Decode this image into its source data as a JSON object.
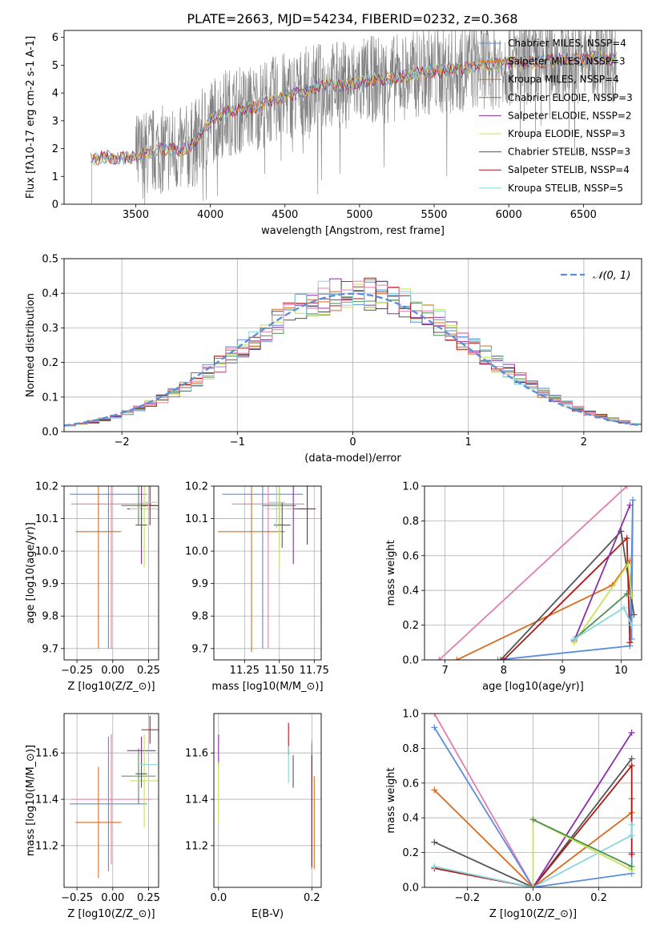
{
  "figure": {
    "title": "PLATE=2663, MJD=54234, FIBERID=0232, z=0.368"
  },
  "colors": {
    "Chabrier MILES": "#5b8ddd",
    "Salpeter MILES": "#e67e22",
    "Kroupa MILES": "#d86b1c",
    "Chabrier ELODIE": "#4f8f4f",
    "Salpeter ELODIE": "#8e2ea8",
    "Kroupa ELODIE": "#c7e25b",
    "Chabrier STELIB": "#555555",
    "Salpeter STELIB": "#b01818",
    "Kroupa STELIB": "#88d6df",
    "pink": "#e07fb0",
    "data": "#808080"
  },
  "chart_data": [
    {
      "id": "spectrum",
      "type": "line",
      "xlabel": "wavelength [Angstrom, rest frame]",
      "ylabel": "Flux [f$_\\lambda$10$^{-17}$ erg cm$^{-2}$ s$^{-1}$ A$^{-1}$]",
      "xlim": [
        3020,
        6890
      ],
      "ylim": [
        0,
        6.25
      ],
      "xticks": [
        3500,
        4000,
        4500,
        5000,
        5500,
        6000,
        6500
      ],
      "yticks": [
        0,
        1,
        2,
        3,
        4,
        5,
        6
      ],
      "continuum": {
        "x": [
          3200,
          3300,
          3400,
          3500,
          3600,
          3700,
          3800,
          3900,
          4000,
          4100,
          4200,
          4300,
          4400,
          4500,
          4600,
          4700,
          4800,
          4900,
          5000,
          5100,
          5200,
          5300,
          5400,
          5500,
          5600,
          5700,
          5800,
          5900,
          6000,
          6100,
          6200,
          6300,
          6400,
          6500,
          6600,
          6720
        ],
        "y": [
          1.6,
          1.7,
          1.65,
          1.7,
          1.9,
          2.0,
          1.9,
          2.2,
          3.0,
          3.3,
          3.4,
          3.5,
          3.7,
          3.9,
          4.0,
          4.2,
          4.3,
          4.3,
          4.4,
          4.5,
          4.5,
          4.6,
          4.7,
          4.8,
          4.8,
          4.9,
          5.0,
          5.0,
          5.1,
          5.1,
          5.1,
          5.2,
          5.2,
          5.2,
          5.3,
          5.2
        ]
      },
      "legend": [
        "Chabrier MILES, N$_{SSP}$=4",
        "Salpeter MILES, N$_{SSP}$=3",
        "Kroupa MILES, N$_{SSP}$=4",
        "Chabrier ELODIE, N$_{SSP}$=3",
        "Salpeter ELODIE, N$_{SSP}$=2",
        "Kroupa ELODIE, N$_{SSP}$=3",
        "Chabrier STELIB, N$_{SSP}$=3",
        "Salpeter STELIB, N$_{SSP}$=4",
        "Kroupa STELIB, N$_{SSP}$=5"
      ],
      "legend_placement": "top-right"
    },
    {
      "id": "residuals",
      "type": "line",
      "xlabel": "(data-model)/error",
      "ylabel": "Normed distribution",
      "xlim": [
        -2.5,
        2.5
      ],
      "ylim": [
        0,
        0.5
      ],
      "xticks": [
        -2,
        -1,
        0,
        1,
        2
      ],
      "yticks": [
        0.0,
        0.1,
        0.2,
        0.3,
        0.4,
        0.5
      ],
      "grid": true,
      "legend": [
        "$\\mathcal{N}(0,1)$"
      ],
      "legend_placement": "top-right"
    },
    {
      "id": "age_vs_Z",
      "type": "scatter",
      "xlabel": "Z [log$_{10}$($Z/Z_\\odot$)]",
      "ylabel": "age  [log$_{10}$($age/yr$)]",
      "xlim": [
        -0.34,
        0.32
      ],
      "ylim": [
        9.665,
        10.2
      ],
      "xticks": [
        -0.25,
        0,
        0.25
      ],
      "yticks": [
        9.7,
        9.8,
        9.9,
        10.0,
        10.1,
        10.2
      ],
      "grid": true,
      "points": [
        {
          "c": "Chabrier MILES",
          "x": -0.03,
          "y": 10.175,
          "xe": 0.27,
          "ye": 0.475
        },
        {
          "c": "pink",
          "x": -0.01,
          "y": 10.145,
          "xe": 0.28,
          "ye": 0.445
        },
        {
          "c": "Kroupa MILES",
          "x": -0.1,
          "y": 10.06,
          "xe": 0.16,
          "ye": 0.36
        },
        {
          "c": "Chabrier ELODIE",
          "x": 0.18,
          "y": 10.14,
          "xe": 0.12,
          "ye": 0.06
        },
        {
          "c": "Salpeter ELODIE",
          "x": 0.2,
          "y": 10.13,
          "xe": 0.1,
          "ye": 0.17
        },
        {
          "c": "Kroupa ELODIE",
          "x": 0.22,
          "y": 10.13,
          "xe": 0.1,
          "ye": 0.18
        },
        {
          "c": "Chabrier STELIB",
          "x": 0.2,
          "y": 10.08,
          "xe": 0.04,
          "ye": 0.07
        },
        {
          "c": "Salpeter STELIB",
          "x": 0.26,
          "y": 10.14,
          "xe": 0.06,
          "ye": 0.06
        },
        {
          "c": "Kroupa STELIB",
          "x": 0.25,
          "y": 10.15,
          "xe": 0.06,
          "ye": 0.08
        }
      ]
    },
    {
      "id": "age_vs_mass",
      "type": "scatter",
      "xlabel": "mass [log$_{10}$($M/M_\\odot$)]",
      "ylabel": "",
      "xlim": [
        11.03,
        11.8
      ],
      "ylim": [
        9.665,
        10.2
      ],
      "xticks": [
        11.25,
        11.5,
        11.75
      ],
      "yticks": [
        9.7,
        9.8,
        9.9,
        10.0,
        10.1,
        10.2
      ],
      "grid": true,
      "points": [
        {
          "c": "Chabrier MILES",
          "x": 11.38,
          "y": 10.175,
          "xe": 0.29,
          "ye": 0.475
        },
        {
          "c": "pink",
          "x": 11.42,
          "y": 10.145,
          "xe": 0.26,
          "ye": 0.445
        },
        {
          "c": "Kroupa MILES",
          "x": 11.3,
          "y": 10.06,
          "xe": 0.24,
          "ye": 0.37
        },
        {
          "c": "Chabrier ELODIE",
          "x": 11.5,
          "y": 10.14,
          "xe": 0.12,
          "ye": 0.06
        },
        {
          "c": "Salpeter ELODIE",
          "x": 11.6,
          "y": 10.13,
          "xe": 0.05,
          "ye": 0.17
        },
        {
          "c": "Kroupa ELODIE",
          "x": 11.5,
          "y": 10.13,
          "xe": 0.1,
          "ye": 0.18
        },
        {
          "c": "Chabrier STELIB",
          "x": 11.52,
          "y": 10.08,
          "xe": 0.06,
          "ye": 0.07
        },
        {
          "c": "Salpeter STELIB",
          "x": 11.7,
          "y": 10.13,
          "xe": 0.06,
          "ye": 0.11
        },
        {
          "c": "Kroupa STELIB",
          "x": 11.48,
          "y": 10.15,
          "xe": 0.06,
          "ye": 0.08
        }
      ]
    },
    {
      "id": "weight_vs_age",
      "type": "line",
      "xlabel": "age  [log$_{10}$($age/yr$)]",
      "ylabel": "mass weight",
      "xlim": [
        6.65,
        10.35
      ],
      "ylim": [
        0,
        1.0
      ],
      "xticks": [
        7,
        8,
        9,
        10
      ],
      "yticks": [
        0.0,
        0.2,
        0.4,
        0.6,
        0.8,
        1.0
      ],
      "grid": true,
      "series": [
        {
          "c": "pink",
          "x": [
            6.9,
            10.1
          ],
          "y": [
            0.0,
            1.0
          ]
        },
        {
          "c": "Kroupa MILES",
          "x": [
            7.2,
            9.85,
            10.15
          ],
          "y": [
            0.0,
            0.43,
            0.57
          ]
        },
        {
          "c": "Chabrier MILES",
          "x": [
            7.9,
            10.15,
            10.2,
            10.18
          ],
          "y": [
            0.0,
            0.08,
            0.92,
            0.12
          ]
        },
        {
          "c": "Chabrier STELIB",
          "x": [
            7.95,
            10.0,
            10.22
          ],
          "y": [
            0.0,
            0.74,
            0.26
          ]
        },
        {
          "c": "Salpeter STELIB",
          "x": [
            8.0,
            10.1,
            10.15
          ],
          "y": [
            0.0,
            0.7,
            0.1
          ]
        },
        {
          "c": "Salpeter ELODIE",
          "x": [
            9.2,
            10.15
          ],
          "y": [
            0.11,
            0.89
          ]
        },
        {
          "c": "Kroupa ELODIE",
          "x": [
            9.2,
            10.12,
            10.18
          ],
          "y": [
            0.1,
            0.55,
            0.37
          ]
        },
        {
          "c": "Chabrier ELODIE",
          "x": [
            9.2,
            10.1
          ],
          "y": [
            0.12,
            0.38
          ]
        },
        {
          "c": "Kroupa STELIB",
          "x": [
            9.2,
            10.05,
            10.18
          ],
          "y": [
            0.12,
            0.3,
            0.2
          ]
        }
      ]
    },
    {
      "id": "mass_vs_Z",
      "type": "scatter",
      "xlabel": "Z [log$_{10}$($Z/Z_\\odot$)]",
      "ylabel": "mass [log$_{10}$($M/M_\\odot$)]",
      "xlim": [
        -0.34,
        0.32
      ],
      "ylim": [
        11.02,
        11.77
      ],
      "xticks": [
        -0.25,
        0,
        0.25
      ],
      "yticks": [
        11.2,
        11.4,
        11.6
      ],
      "grid": true,
      "points": [
        {
          "c": "Chabrier MILES",
          "x": -0.03,
          "y": 11.38,
          "xe": 0.27,
          "ye": 0.29
        },
        {
          "c": "pink",
          "x": -0.01,
          "y": 11.4,
          "xe": 0.28,
          "ye": 0.28
        },
        {
          "c": "Kroupa MILES",
          "x": -0.1,
          "y": 11.3,
          "xe": 0.16,
          "ye": 0.24
        },
        {
          "c": "Chabrier ELODIE",
          "x": 0.18,
          "y": 11.5,
          "xe": 0.12,
          "ye": 0.12
        },
        {
          "c": "Salpeter ELODIE",
          "x": 0.2,
          "y": 11.61,
          "xe": 0.1,
          "ye": 0.06
        },
        {
          "c": "Kroupa ELODIE",
          "x": 0.22,
          "y": 11.48,
          "xe": 0.1,
          "ye": 0.2
        },
        {
          "c": "Chabrier STELIB",
          "x": 0.2,
          "y": 11.51,
          "xe": 0.04,
          "ye": 0.06
        },
        {
          "c": "Salpeter STELIB",
          "x": 0.26,
          "y": 11.7,
          "xe": 0.06,
          "ye": 0.06
        },
        {
          "c": "Kroupa STELIB",
          "x": 0.25,
          "y": 11.55,
          "xe": 0.06,
          "ye": 0.06
        }
      ]
    },
    {
      "id": "mass_vs_EBV",
      "type": "scatter",
      "xlabel": "E(B-V)",
      "ylabel": "",
      "xlim": [
        -0.01,
        0.22
      ],
      "ylim": [
        11.02,
        11.77
      ],
      "xticks": [
        0.0,
        0.2
      ],
      "yticks": [
        11.2,
        11.4,
        11.6
      ],
      "grid": true,
      "points": [
        {
          "c": "Salpeter ELODIE",
          "x": 0.0,
          "y": 11.61,
          "xe": 0,
          "ye": 0.07
        },
        {
          "c": "Kroupa ELODIE",
          "x": 0.0,
          "y": 11.43,
          "xe": 0,
          "ye": 0.13
        },
        {
          "c": "Salpeter STELIB",
          "x": 0.15,
          "y": 11.66,
          "xe": 0,
          "ye": 0.07
        },
        {
          "c": "Kroupa STELIB",
          "x": 0.15,
          "y": 11.55,
          "xe": 0,
          "ye": 0.08
        },
        {
          "c": "Chabrier STELIB",
          "x": 0.16,
          "y": 11.52,
          "xe": 0,
          "ye": 0.07
        },
        {
          "c": "pink",
          "x": 0.2,
          "y": 11.38,
          "xe": 0,
          "ye": 0.28
        },
        {
          "c": "Chabrier MILES",
          "x": 0.2,
          "y": 11.37,
          "xe": 0,
          "ye": 0.27
        },
        {
          "c": "Kroupa MILES",
          "x": 0.205,
          "y": 11.3,
          "xe": 0,
          "ye": 0.2
        },
        {
          "c": "Salpeter STELIB",
          "x": 0.2,
          "y": 11.35,
          "xe": 0,
          "ye": 0.24
        }
      ]
    },
    {
      "id": "weight_vs_Z",
      "type": "line",
      "xlabel": "Z [log$_{10}$($Z/Z_\\odot$)]",
      "ylabel": "mass weight",
      "xlim": [
        -0.33,
        0.33
      ],
      "ylim": [
        0,
        1.0
      ],
      "xticks": [
        -0.2,
        0.0,
        0.2
      ],
      "yticks": [
        0.0,
        0.2,
        0.4,
        0.6,
        0.8,
        1.0
      ],
      "grid": true,
      "series": [
        {
          "c": "pink",
          "x": [
            -0.3,
            0.0
          ],
          "y": [
            1.0,
            0.0
          ]
        },
        {
          "c": "Chabrier MILES",
          "x": [
            -0.3,
            0.0,
            0.3,
            0.3
          ],
          "y": [
            0.92,
            0.0,
            0.08,
            0.2
          ]
        },
        {
          "c": "Kroupa MILES",
          "x": [
            -0.3,
            0.0,
            0.3,
            0.3
          ],
          "y": [
            0.56,
            0.0,
            0.43,
            0.51
          ]
        },
        {
          "c": "Chabrier STELIB",
          "x": [
            -0.3,
            0.0,
            0.3
          ],
          "y": [
            0.26,
            0.0,
            0.74
          ]
        },
        {
          "c": "Salpeter STELIB",
          "x": [
            -0.3,
            0.0,
            0.3,
            0.3
          ],
          "y": [
            0.11,
            0.0,
            0.7,
            0.19
          ]
        },
        {
          "c": "Kroupa STELIB",
          "x": [
            -0.3,
            0.0,
            0.3,
            0.3
          ],
          "y": [
            0.12,
            0.0,
            0.3,
            0.36
          ]
        },
        {
          "c": "Salpeter ELODIE",
          "x": [
            0.0,
            0.3
          ],
          "y": [
            0.0,
            0.89
          ]
        },
        {
          "c": "Kroupa ELODIE",
          "x": [
            0.0,
            0.0,
            0.3
          ],
          "y": [
            0.0,
            0.39,
            0.1
          ]
        },
        {
          "c": "Chabrier ELODIE",
          "x": [
            0.0,
            0.3
          ],
          "y": [
            0.39,
            0.12
          ]
        }
      ]
    }
  ]
}
